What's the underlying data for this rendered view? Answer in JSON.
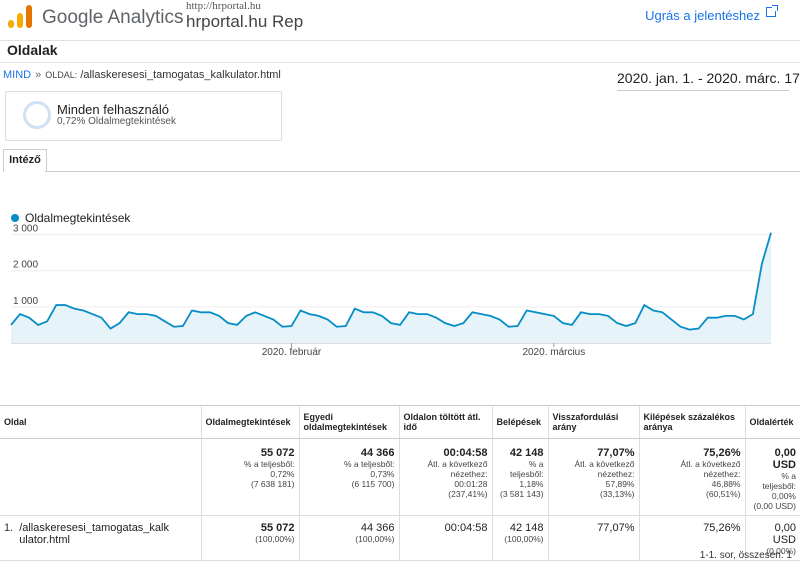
{
  "header": {
    "app_name": "Google Analytics",
    "property_url": "http://hrportal.hu",
    "property_name": "hrportal.hu Rep",
    "jump_link": "Ugrás a jelentéshez"
  },
  "page_title": "Oldalak",
  "breadcrumb": {
    "root": "MIND",
    "separator": "»",
    "label": "OLDAL:",
    "value": "/allaskeresesi_tamogatas_kalkulator.html"
  },
  "date_range": "2020. jan. 1. - 2020. márc. 17.",
  "segment": {
    "name": "Minden felhasználó",
    "subtitle": "0,72% Oldalmegtekintések"
  },
  "tabs": [
    "Intéző"
  ],
  "colors": {
    "line": "#058dc7",
    "area": "#e6f3f9",
    "accent": "#1a73e8"
  },
  "chart_data": {
    "type": "area",
    "series": [
      {
        "name": "Oldalmegtekintések",
        "values": [
          500,
          800,
          700,
          500,
          600,
          1050,
          1050,
          950,
          900,
          800,
          700,
          400,
          550,
          850,
          800,
          800,
          750,
          600,
          450,
          470,
          900,
          850,
          850,
          750,
          550,
          500,
          750,
          850,
          750,
          650,
          450,
          470,
          900,
          800,
          750,
          650,
          450,
          470,
          950,
          850,
          850,
          750,
          550,
          500,
          850,
          800,
          800,
          700,
          550,
          470,
          550,
          850,
          800,
          750,
          650,
          450,
          470,
          900,
          850,
          800,
          750,
          550,
          500,
          850,
          800,
          800,
          750,
          550,
          470,
          550,
          1050,
          900,
          850,
          650,
          450,
          370,
          400,
          700,
          700,
          750,
          750,
          650,
          800,
          2200,
          3050
        ]
      }
    ],
    "x_tick_labels": [
      "2020. február",
      "2020. március"
    ],
    "y_ticks": [
      "1 000",
      "2 000",
      "3 000"
    ],
    "ylim": [
      0,
      3100
    ]
  },
  "table": {
    "headers": [
      "Oldal",
      "Oldalmegtekintések",
      "Egyedi oldalmegtekintések",
      "Oldalon töltött átl. idő",
      "Belépések",
      "Visszafordulási arány",
      "Kilépések százalékos aránya",
      "Oldalérték"
    ],
    "totals": [
      {
        "main": "",
        "sub": []
      },
      {
        "main": "55 072",
        "sub": [
          "% a teljesből:",
          "0,72%",
          "(7 638 181)"
        ]
      },
      {
        "main": "44 366",
        "sub": [
          "% a teljesből:",
          "0,73%",
          "(6 115 700)"
        ]
      },
      {
        "main": "00:04:58",
        "sub": [
          "Átl. a következő",
          "nézethez:",
          "00:01:28",
          "(237,41%)"
        ]
      },
      {
        "main": "42 148",
        "sub": [
          "% a",
          "teljesből:",
          "1,18%",
          "(3 581 143)"
        ]
      },
      {
        "main": "77,07%",
        "sub": [
          "Átl. a következő",
          "nézethez:",
          "57,89%",
          "(33,13%)"
        ]
      },
      {
        "main": "75,26%",
        "sub": [
          "Átl. a következő",
          "nézethez:",
          "46,88%",
          "(60,51%)"
        ]
      },
      {
        "main": "0,00 USD",
        "sub": [
          "% a",
          "teljesből:",
          "0,00%",
          "(0,00 USD)"
        ]
      }
    ],
    "rows": [
      {
        "index": "1.",
        "page": "/allaskeresesi_tamogatas_kalkulator.html",
        "cells": [
          {
            "main": "55 072",
            "sub": "(100,00%)",
            "bold": true
          },
          {
            "main": "44 366",
            "sub": "(100,00%)",
            "bold": false
          },
          {
            "main": "00:04:58",
            "sub": "",
            "bold": false
          },
          {
            "main": "42 148",
            "sub": "(100,00%)",
            "bold": false
          },
          {
            "main": "77,07%",
            "sub": "",
            "bold": false
          },
          {
            "main": "75,26%",
            "sub": "",
            "bold": false
          },
          {
            "main": "0,00 USD",
            "sub": "(0,00%)",
            "bold": false
          }
        ]
      }
    ]
  },
  "footer": "1-1. sor, összesen: 1"
}
